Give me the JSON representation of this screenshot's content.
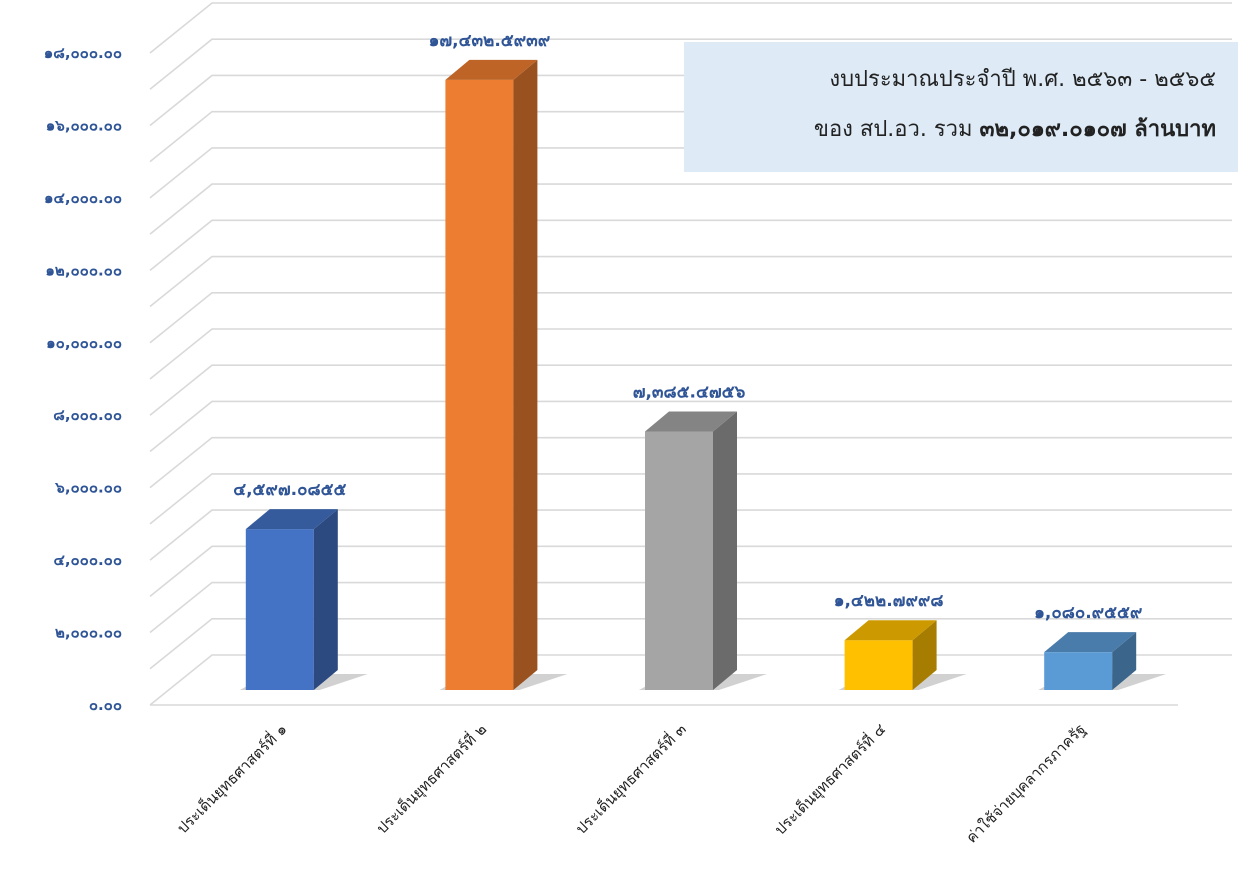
{
  "chart_data": {
    "type": "bar",
    "categories": [
      "ประเด็นยุทธศาสตร์ที่ ๑",
      "ประเด็นยุทธศาสตร์ที่ ๒",
      "ประเด็นยุทธศาสตร์ที่ ๓",
      "ประเด็นยุทธศาสตร์ที่ ๔",
      "ค่าใช้จ่ายบุคลากรภาครัฐ"
    ],
    "values": [
      4597.0855,
      17432.5939,
      7385.4756,
      1422.7998,
      1080.9559
    ],
    "data_labels": [
      "๔,๕๙๗.๐๘๕๕",
      "๑๗,๔๓๒.๕๙๓๙",
      "๗,๓๘๕.๔๗๕๖",
      "๑,๔๒๒.๗๙๙๘",
      "๑,๐๘๐.๙๕๕๙"
    ],
    "colors": [
      "#4472C4",
      "#ED7D31",
      "#A5A5A5",
      "#FFC000",
      "#5B9BD5"
    ],
    "ylim": [
      0,
      18000
    ],
    "y_ticks": [
      0,
      2000,
      4000,
      6000,
      8000,
      10000,
      12000,
      14000,
      16000,
      18000
    ],
    "y_tick_labels": [
      "๐.๐๐",
      "๒,๐๐๐.๐๐",
      "๔,๐๐๐.๐๐",
      "๖,๐๐๐.๐๐",
      "๘,๐๐๐.๐๐",
      "๑๐,๐๐๐.๐๐",
      "๑๒,๐๐๐.๐๐",
      "๑๔,๐๐๐.๐๐",
      "๑๖,๐๐๐.๐๐",
      "๑๘,๐๐๐.๐๐"
    ],
    "grid": true,
    "style": "3d-column"
  },
  "info_box": {
    "line1": "งบประมาณประจำปี พ.ศ. ๒๕๖๓ - ๒๕๖๕",
    "line2_prefix": "ของ สป.อว. รวม ",
    "line2_amount": "๓๒,๐๑๙.๐๑๐๗ ล้านบาท"
  }
}
